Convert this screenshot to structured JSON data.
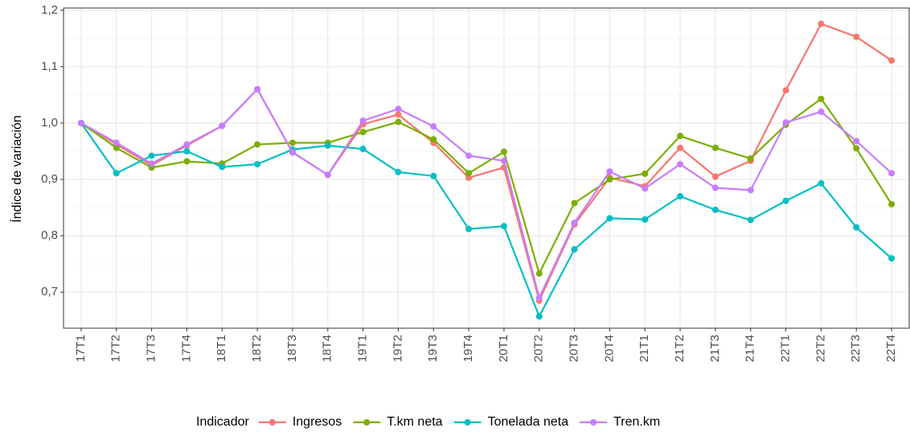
{
  "chart_data": {
    "type": "line",
    "y_label": "Índice de variación",
    "legend_title": "Indicador",
    "legend": "bottom",
    "grid": true,
    "categories": [
      "17T1",
      "17T2",
      "17T3",
      "17T4",
      "18T1",
      "18T2",
      "18T3",
      "18T4",
      "19T1",
      "19T2",
      "19T3",
      "19T4",
      "20T1",
      "20T2",
      "20T3",
      "20T4",
      "21T1",
      "21T2",
      "21T3",
      "21T4",
      "22T1",
      "22T2",
      "22T3",
      "22T4"
    ],
    "ylim": [
      0.636,
      1.204
    ],
    "yticks": [
      {
        "value": 0.7,
        "label": "0,7"
      },
      {
        "value": 0.8,
        "label": "0,8"
      },
      {
        "value": 0.9,
        "label": "0,9"
      },
      {
        "value": 1.0,
        "label": "1,0"
      },
      {
        "value": 1.1,
        "label": "1,1"
      },
      {
        "value": 1.2,
        "label": "1,2"
      }
    ],
    "series": [
      {
        "name": "Ingresos",
        "color": "#F8766D",
        "values": [
          1.0,
          0.962,
          0.925,
          0.96,
          0.995,
          1.06,
          0.948,
          0.908,
          0.998,
          1.015,
          0.965,
          0.903,
          0.921,
          0.685,
          0.82,
          0.903,
          0.888,
          0.956,
          0.905,
          0.933,
          1.058,
          1.176,
          1.153,
          1.111
        ]
      },
      {
        "name": "T.km neta",
        "color": "#7CAE00",
        "values": [
          1.0,
          0.956,
          0.921,
          0.932,
          0.928,
          0.962,
          0.965,
          0.965,
          0.984,
          1.002,
          0.971,
          0.911,
          0.949,
          0.733,
          0.858,
          0.9,
          0.91,
          0.977,
          0.956,
          0.937,
          0.997,
          1.043,
          0.955,
          0.856
        ]
      },
      {
        "name": "Tonelada neta",
        "color": "#00BFC4",
        "values": [
          1.0,
          0.911,
          0.942,
          0.95,
          0.922,
          0.927,
          0.953,
          0.96,
          0.954,
          0.913,
          0.906,
          0.812,
          0.817,
          0.657,
          0.776,
          0.831,
          0.829,
          0.87,
          0.846,
          0.828,
          0.862,
          0.893,
          0.815,
          0.76
        ]
      },
      {
        "name": "Tren.km",
        "color": "#C77CFF",
        "values": [
          1.0,
          0.965,
          0.928,
          0.962,
          0.995,
          1.06,
          0.948,
          0.908,
          1.004,
          1.025,
          0.994,
          0.942,
          0.933,
          0.69,
          0.823,
          0.914,
          0.884,
          0.927,
          0.885,
          0.881,
          1.001,
          1.02,
          0.968,
          0.911
        ]
      }
    ]
  }
}
